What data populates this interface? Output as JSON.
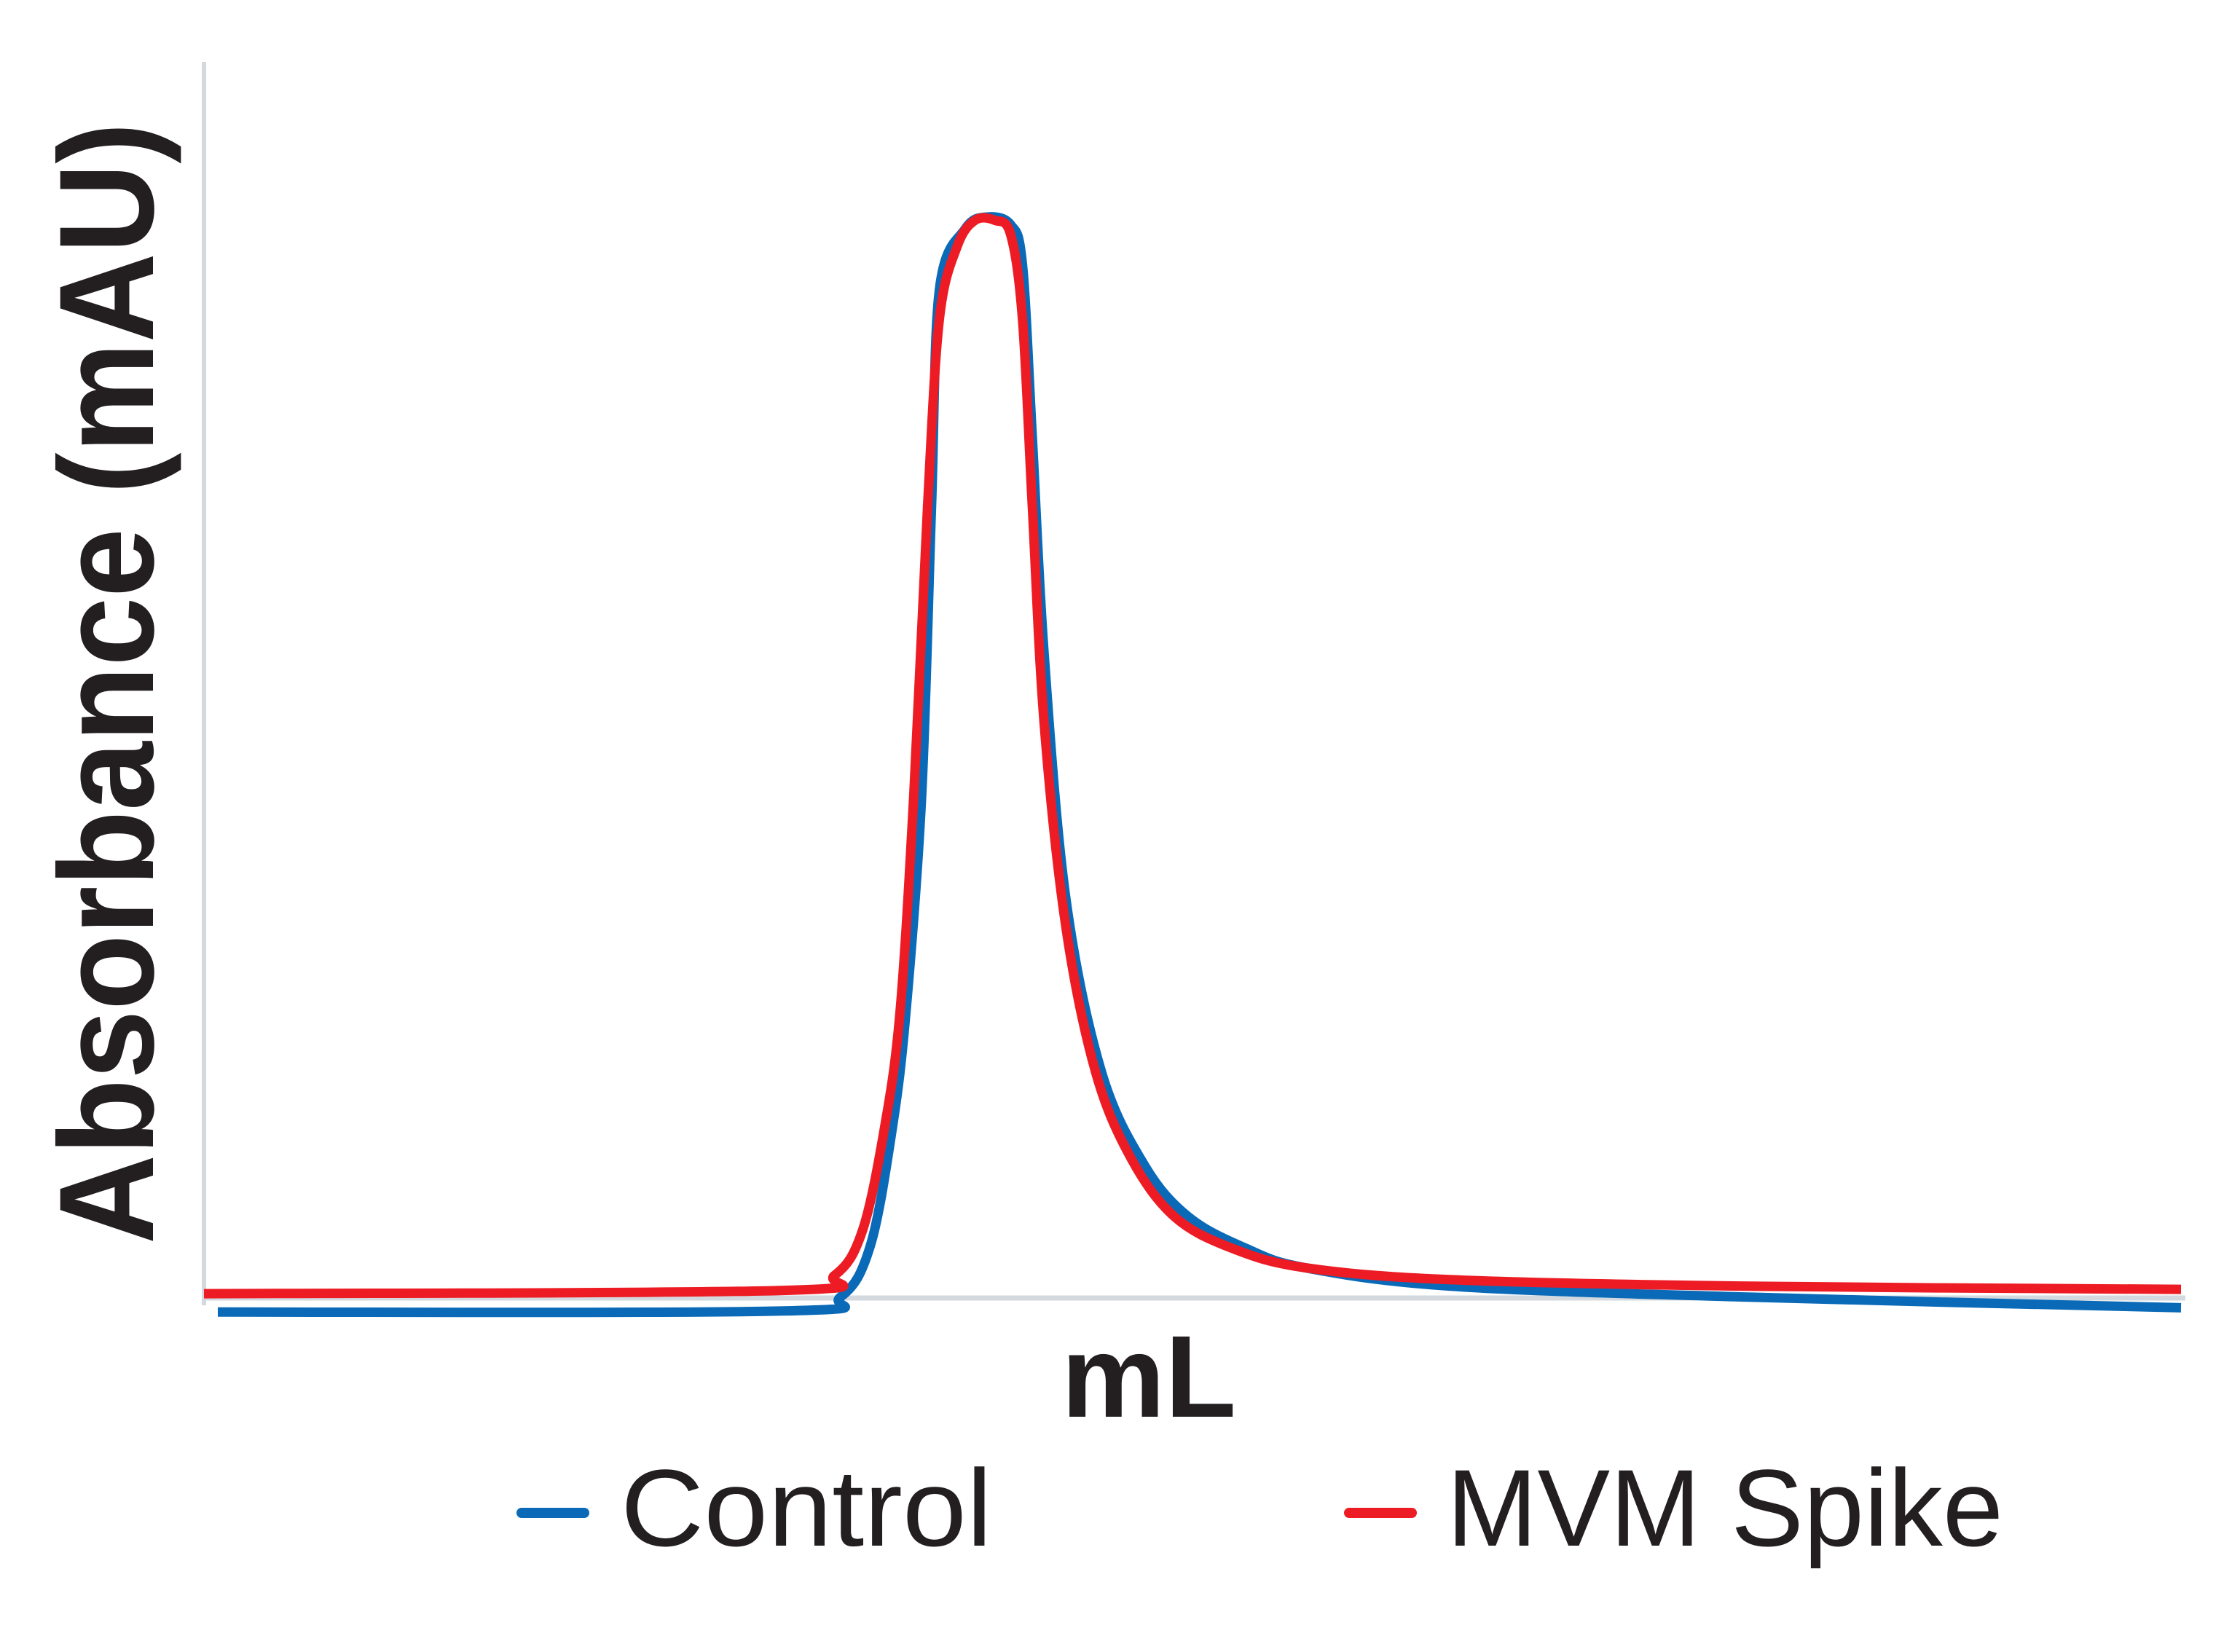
{
  "chart_data": {
    "type": "line",
    "title": "",
    "xlabel": "mL",
    "ylabel": "Absorbance (mAU)",
    "xlim": [
      0,
      100
    ],
    "ylim": [
      -3,
      100
    ],
    "grid": false,
    "legend": "bottom",
    "series": [
      {
        "name": "Control",
        "color": "#0a6ab8",
        "x": [
          0.7,
          29.3,
          32.2,
          33.7,
          34.8,
          35.5,
          36.3,
          36.8,
          37.2,
          38.5,
          39.6,
          40.8,
          41.4,
          41.9,
          42.5,
          43.6,
          45.4,
          47.6,
          49.8,
          52.7,
          55.7,
          63.0,
          77.7,
          100
        ],
        "y": [
          -1.3,
          -1.2,
          0.1,
          4.8,
          15.5,
          26.3,
          46.4,
          73.2,
          93.3,
          98.9,
          100,
          99.3,
          95.6,
          79.6,
          59.5,
          36.9,
          20.9,
          12.2,
          7.5,
          4.6,
          2.8,
          1.1,
          0.1,
          -0.9
        ]
      },
      {
        "name": "MVM Spike",
        "color": "#ed1c24",
        "x": [
          0,
          29.3,
          31.9,
          33.3,
          34.4,
          35.2,
          35.9,
          36.6,
          37.2,
          38.1,
          39.0,
          40.0,
          40.8,
          41.4,
          41.9,
          42.5,
          43.6,
          45.1,
          46.9,
          49.1,
          52.0,
          55.7,
          63.0,
          77.7,
          100
        ],
        "y": [
          0.4,
          0.7,
          2.1,
          6.2,
          15.5,
          26.3,
          46.4,
          73.2,
          90.6,
          97.3,
          99.7,
          99.7,
          98.4,
          90.6,
          73.2,
          53.1,
          34.3,
          20.9,
          12.9,
          7.5,
          4.6,
          2.8,
          1.7,
          1.1,
          0.8
        ]
      }
    ]
  }
}
